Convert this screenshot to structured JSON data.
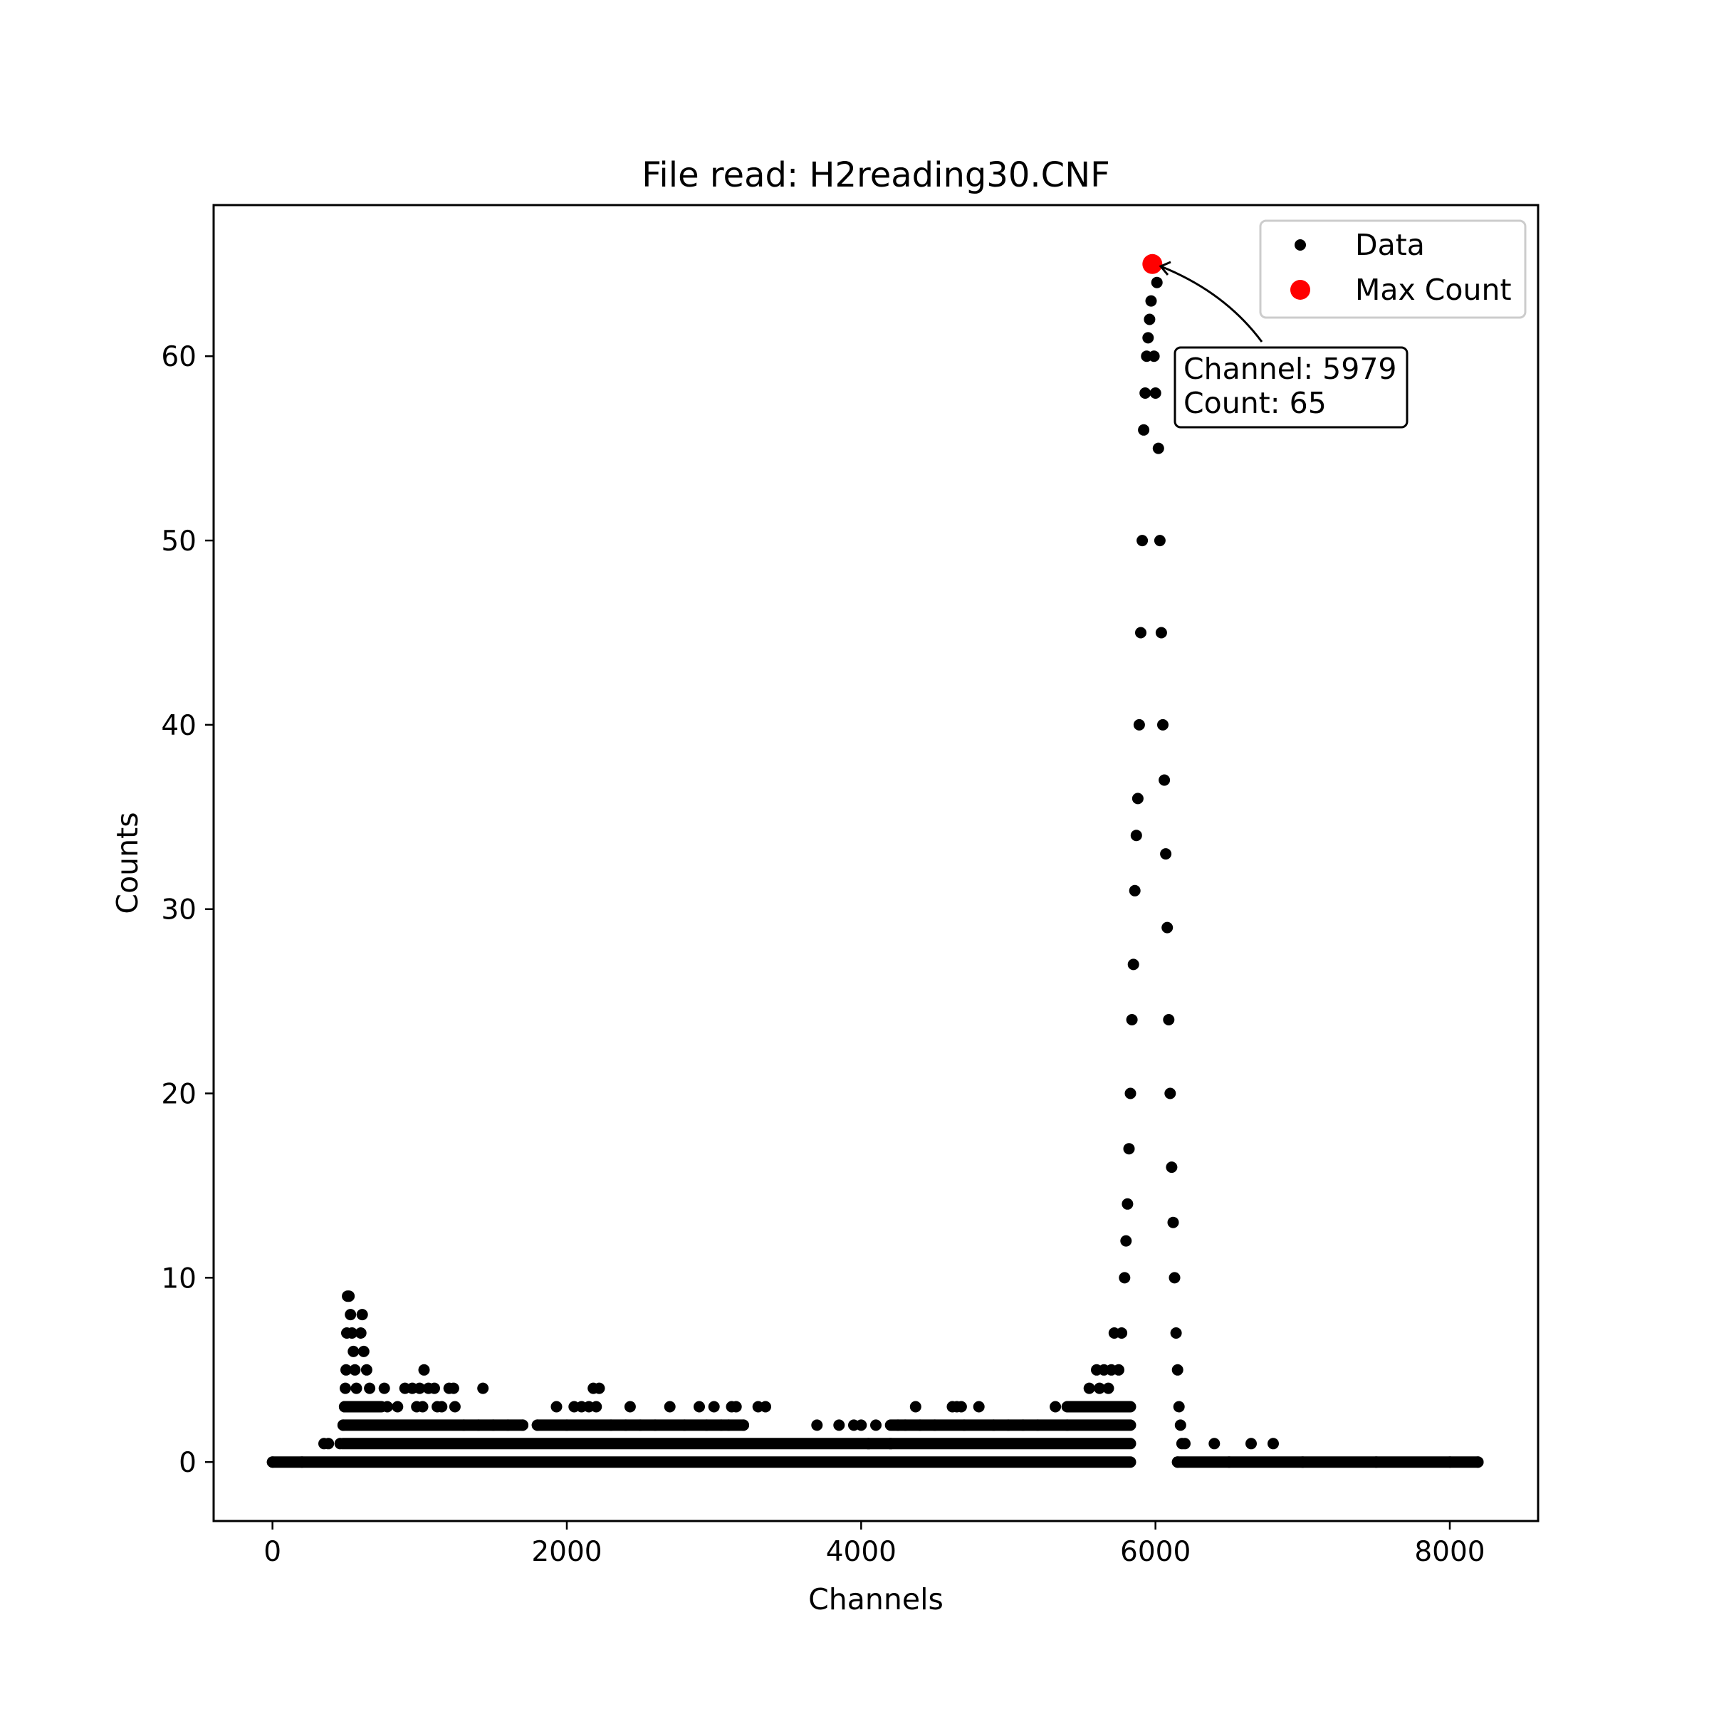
{
  "chart_data": {
    "type": "scatter",
    "title": "File read: H2reading30.CNF",
    "xlabel": "Channels",
    "ylabel": "Counts",
    "xlim": [
      -400,
      8600
    ],
    "ylim": [
      -3.2,
      68.2
    ],
    "xticks": [
      0,
      2000,
      4000,
      6000,
      8000
    ],
    "xtick_labels": [
      "0",
      "2000",
      "4000",
      "6000",
      "8000"
    ],
    "yticks": [
      0,
      10,
      20,
      30,
      40,
      50,
      60
    ],
    "ytick_labels": [
      "0",
      "10",
      "20",
      "30",
      "40",
      "50",
      "60"
    ],
    "grid": false,
    "legend": {
      "position": "top-right",
      "entries": [
        {
          "label": "Data",
          "color": "#000000",
          "marker": "small-dot"
        },
        {
          "label": "Max Count",
          "color": "#ff0000",
          "marker": "large-dot"
        }
      ]
    },
    "series": [
      {
        "name": "Data",
        "color": "#000000",
        "points": [
          [
            0,
            0
          ],
          [
            200,
            0
          ],
          [
            350,
            1
          ],
          [
            380,
            1
          ],
          [
            460,
            1
          ],
          [
            480,
            2
          ],
          [
            490,
            3
          ],
          [
            495,
            4
          ],
          [
            500,
            5
          ],
          [
            505,
            7
          ],
          [
            510,
            9
          ],
          [
            520,
            9
          ],
          [
            530,
            8
          ],
          [
            540,
            7
          ],
          [
            550,
            6
          ],
          [
            560,
            5
          ],
          [
            570,
            4
          ],
          [
            580,
            3
          ],
          [
            600,
            7
          ],
          [
            610,
            8
          ],
          [
            620,
            6
          ],
          [
            640,
            5
          ],
          [
            660,
            4
          ],
          [
            700,
            3
          ],
          [
            760,
            4
          ],
          [
            780,
            3
          ],
          [
            850,
            3
          ],
          [
            900,
            4
          ],
          [
            950,
            4
          ],
          [
            980,
            3
          ],
          [
            1000,
            4
          ],
          [
            1020,
            3
          ],
          [
            1030,
            5
          ],
          [
            1060,
            4
          ],
          [
            1100,
            4
          ],
          [
            1120,
            3
          ],
          [
            1150,
            3
          ],
          [
            1200,
            4
          ],
          [
            1230,
            4
          ],
          [
            1240,
            3
          ],
          [
            1300,
            2
          ],
          [
            1400,
            2
          ],
          [
            1430,
            4
          ],
          [
            1500,
            2
          ],
          [
            1600,
            2
          ],
          [
            1700,
            2
          ],
          [
            1800,
            2
          ],
          [
            1930,
            3
          ],
          [
            2000,
            2
          ],
          [
            2050,
            3
          ],
          [
            2100,
            3
          ],
          [
            2150,
            3
          ],
          [
            2180,
            4
          ],
          [
            2220,
            4
          ],
          [
            2200,
            3
          ],
          [
            2300,
            2
          ],
          [
            2400,
            2
          ],
          [
            2430,
            3
          ],
          [
            2500,
            2
          ],
          [
            2600,
            2
          ],
          [
            2700,
            3
          ],
          [
            2800,
            2
          ],
          [
            2900,
            3
          ],
          [
            2950,
            2
          ],
          [
            3000,
            3
          ],
          [
            3050,
            2
          ],
          [
            3100,
            2
          ],
          [
            3120,
            3
          ],
          [
            3150,
            3
          ],
          [
            3200,
            2
          ],
          [
            3300,
            3
          ],
          [
            3350,
            3
          ],
          [
            3700,
            2
          ],
          [
            3850,
            2
          ],
          [
            3950,
            2
          ],
          [
            4000,
            2
          ],
          [
            4050,
            1
          ],
          [
            4100,
            2
          ],
          [
            4200,
            1
          ],
          [
            4250,
            2
          ],
          [
            4300,
            2
          ],
          [
            4370,
            3
          ],
          [
            4400,
            2
          ],
          [
            4500,
            2
          ],
          [
            4620,
            3
          ],
          [
            4650,
            3
          ],
          [
            4680,
            3
          ],
          [
            4700,
            2
          ],
          [
            4800,
            3
          ],
          [
            4900,
            2
          ],
          [
            5000,
            2
          ],
          [
            5100,
            2
          ],
          [
            5200,
            2
          ],
          [
            5320,
            3
          ],
          [
            5400,
            2
          ],
          [
            5450,
            3
          ],
          [
            5500,
            3
          ],
          [
            5550,
            4
          ],
          [
            5600,
            5
          ],
          [
            5620,
            4
          ],
          [
            5650,
            5
          ],
          [
            5680,
            4
          ],
          [
            5700,
            5
          ],
          [
            5720,
            7
          ],
          [
            5750,
            5
          ],
          [
            5770,
            7
          ],
          [
            5790,
            10
          ],
          [
            5800,
            12
          ],
          [
            5810,
            14
          ],
          [
            5820,
            17
          ],
          [
            5830,
            20
          ],
          [
            5840,
            24
          ],
          [
            5850,
            27
          ],
          [
            5860,
            31
          ],
          [
            5870,
            34
          ],
          [
            5880,
            36
          ],
          [
            5890,
            40
          ],
          [
            5900,
            45
          ],
          [
            5910,
            50
          ],
          [
            5920,
            56
          ],
          [
            5930,
            58
          ],
          [
            5940,
            60
          ],
          [
            5950,
            61
          ],
          [
            5960,
            62
          ],
          [
            5970,
            63
          ],
          [
            5979,
            65
          ],
          [
            5990,
            60
          ],
          [
            6000,
            58
          ],
          [
            6010,
            64
          ],
          [
            6020,
            55
          ],
          [
            6030,
            50
          ],
          [
            6040,
            45
          ],
          [
            6050,
            40
          ],
          [
            6060,
            37
          ],
          [
            6070,
            33
          ],
          [
            6080,
            29
          ],
          [
            6090,
            24
          ],
          [
            6100,
            20
          ],
          [
            6110,
            16
          ],
          [
            6120,
            13
          ],
          [
            6130,
            10
          ],
          [
            6140,
            7
          ],
          [
            6150,
            5
          ],
          [
            6160,
            3
          ],
          [
            6170,
            2
          ],
          [
            6180,
            1
          ],
          [
            6200,
            1
          ],
          [
            6400,
            1
          ],
          [
            6650,
            1
          ],
          [
            6800,
            1
          ],
          [
            6150,
            0
          ],
          [
            6500,
            0
          ],
          [
            7000,
            0
          ],
          [
            7500,
            0
          ],
          [
            8000,
            0
          ],
          [
            8191,
            0
          ]
        ]
      },
      {
        "name": "Max Count",
        "color": "#ff0000",
        "points": [
          [
            5979,
            65
          ]
        ]
      }
    ],
    "annotation": {
      "target": [
        5979,
        65
      ],
      "lines": [
        "Channel: 5979",
        "Count: 65"
      ]
    }
  }
}
